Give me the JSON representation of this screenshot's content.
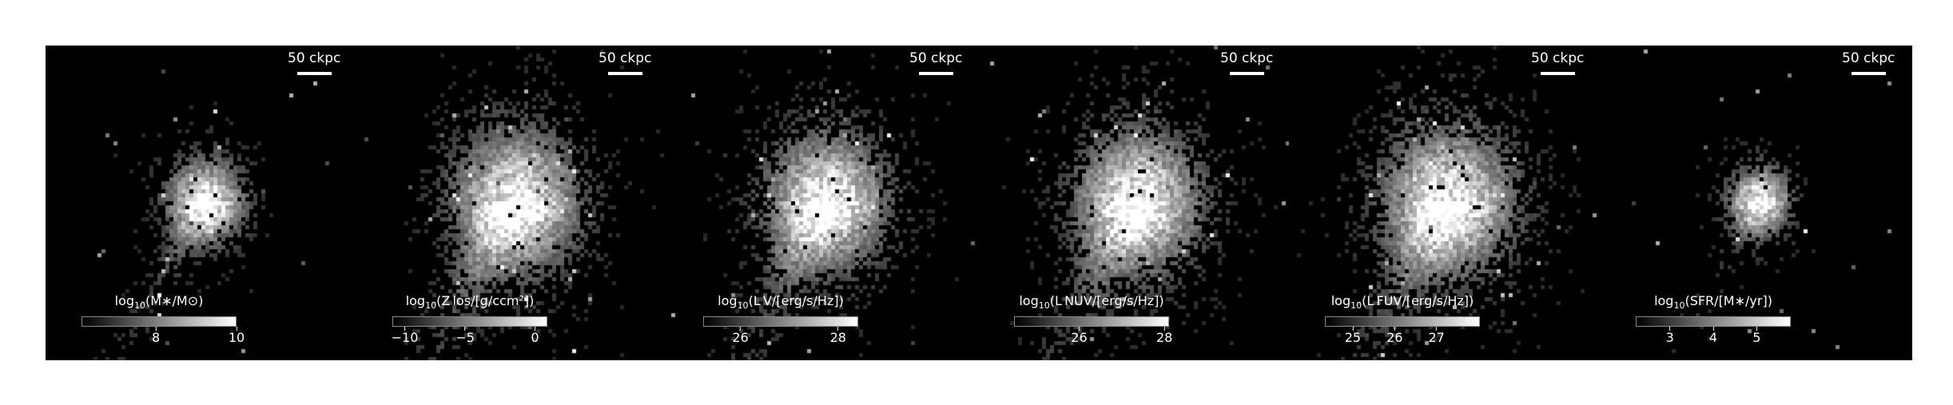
{
  "panels": [
    {
      "scalebar": "50 ckpc",
      "cb_prefix": "log",
      "cb_sub": "10",
      "cb_rest": "(M∗/M⊙)",
      "ticks": [
        {
          "label": "8",
          "pos": 0.48
        },
        {
          "label": "10",
          "pos": 1.0
        }
      ],
      "peak": 0.93,
      "spread": 0.55,
      "tail": 0.6
    },
    {
      "scalebar": "50 ckpc",
      "cb_prefix": "log",
      "cb_sub": "10",
      "cb_rest": "(Z los/[g/ccm²])",
      "ticks": [
        {
          "label": "−10",
          "pos": 0.08
        },
        {
          "label": "−5",
          "pos": 0.47
        },
        {
          "label": "0",
          "pos": 0.92
        }
      ],
      "peak": 0.95,
      "spread": 1.0,
      "tail": 1.0
    },
    {
      "scalebar": "50 ckpc",
      "cb_prefix": "log",
      "cb_sub": "10",
      "cb_rest": "(L V/[erg/s/Hz])",
      "ticks": [
        {
          "label": "26",
          "pos": 0.24
        },
        {
          "label": "28",
          "pos": 0.87
        }
      ],
      "peak": 0.95,
      "spread": 0.95,
      "tail": 0.9
    },
    {
      "scalebar": "50 ckpc",
      "cb_prefix": "log",
      "cb_sub": "10",
      "cb_rest": "(L NUV/[erg/s/Hz])",
      "ticks": [
        {
          "label": "26",
          "pos": 0.42
        },
        {
          "label": "28",
          "pos": 0.97
        }
      ],
      "peak": 0.9,
      "spread": 1.0,
      "tail": 0.9
    },
    {
      "scalebar": "50 ckpc",
      "cb_prefix": "log",
      "cb_sub": "10",
      "cb_rest": "(L FUV/[erg/s/Hz])",
      "ticks": [
        {
          "label": "25",
          "pos": 0.18
        },
        {
          "label": "26",
          "pos": 0.45
        },
        {
          "label": "27",
          "pos": 0.72
        }
      ],
      "peak": 0.9,
      "spread": 1.05,
      "tail": 0.9
    },
    {
      "scalebar": "50 ckpc",
      "cb_prefix": "log",
      "cb_sub": "10",
      "cb_rest": "(SFR/[M∗/yr])",
      "ticks": [
        {
          "label": "3",
          "pos": 0.22
        },
        {
          "label": "4",
          "pos": 0.5
        },
        {
          "label": "5",
          "pos": 0.78
        }
      ],
      "peak": 0.9,
      "spread": 0.42,
      "tail": 0.25
    }
  ]
}
